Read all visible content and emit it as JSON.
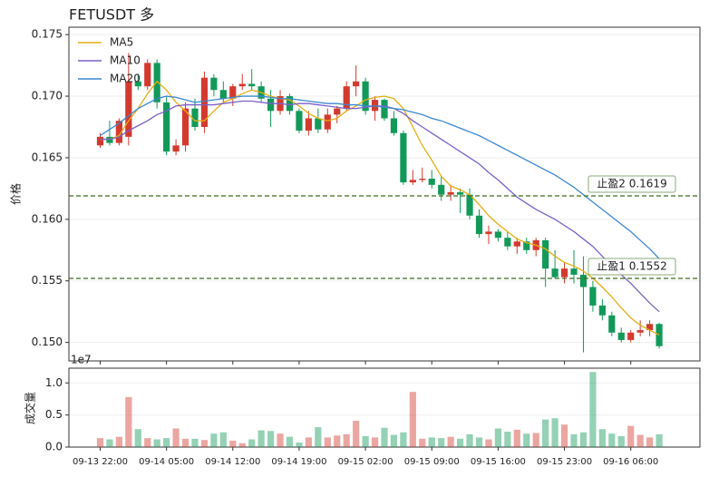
{
  "chart_data": [
    {
      "type": "candlestick",
      "title": "FETUSDT  多",
      "ylabel": "价格",
      "up_color": "#d33a2f",
      "down_color": "#12995a",
      "open": [
        0.166,
        0.1667,
        0.1662,
        0.1667,
        0.1712,
        0.1708,
        0.1727,
        0.1695,
        0.1655,
        0.166,
        0.169,
        0.1675,
        0.1715,
        0.1705,
        0.1698,
        0.1708,
        0.171,
        0.1708,
        0.1698,
        0.1688,
        0.17,
        0.1688,
        0.1672,
        0.1682,
        0.1673,
        0.1685,
        0.169,
        0.1708,
        0.1712,
        0.1688,
        0.1697,
        0.1682,
        0.167,
        0.163,
        0.1632,
        0.1633,
        0.1628,
        0.162,
        0.1622,
        0.162,
        0.1603,
        0.1588,
        0.159,
        0.1585,
        0.1578,
        0.1582,
        0.1575,
        0.1583,
        0.156,
        0.1553,
        0.156,
        0.1555,
        0.1545,
        0.153,
        0.1522,
        0.1508,
        0.1502,
        0.1508,
        0.151,
        0.1515
      ],
      "high": [
        0.167,
        0.168,
        0.1682,
        0.1735,
        0.1718,
        0.173,
        0.173,
        0.17,
        0.1665,
        0.1695,
        0.1698,
        0.172,
        0.1718,
        0.1712,
        0.171,
        0.1718,
        0.1722,
        0.1712,
        0.1705,
        0.1705,
        0.1702,
        0.169,
        0.1688,
        0.169,
        0.169,
        0.1692,
        0.1712,
        0.1725,
        0.1715,
        0.17,
        0.1698,
        0.1688,
        0.1672,
        0.164,
        0.1642,
        0.164,
        0.1635,
        0.1628,
        0.1625,
        0.1625,
        0.1608,
        0.1595,
        0.1592,
        0.159,
        0.1585,
        0.1585,
        0.1585,
        0.1585,
        0.1575,
        0.1565,
        0.1575,
        0.157,
        0.155,
        0.1535,
        0.1525,
        0.1512,
        0.151,
        0.1518,
        0.1518,
        0.1516
      ],
      "low": [
        0.1658,
        0.166,
        0.166,
        0.166,
        0.1705,
        0.1705,
        0.169,
        0.1652,
        0.1652,
        0.1655,
        0.1672,
        0.167,
        0.17,
        0.1695,
        0.1692,
        0.1705,
        0.1705,
        0.1695,
        0.1675,
        0.1685,
        0.1685,
        0.167,
        0.1668,
        0.167,
        0.167,
        0.1678,
        0.1688,
        0.17,
        0.1685,
        0.168,
        0.168,
        0.1668,
        0.1628,
        0.1628,
        0.163,
        0.1625,
        0.1615,
        0.1615,
        0.1605,
        0.16,
        0.1585,
        0.158,
        0.1582,
        0.1575,
        0.1572,
        0.1572,
        0.157,
        0.1545,
        0.1552,
        0.1548,
        0.1548,
        0.1492,
        0.1525,
        0.1518,
        0.1505,
        0.15,
        0.15,
        0.1505,
        0.1505,
        0.1495
      ],
      "close": [
        0.1667,
        0.1662,
        0.168,
        0.1712,
        0.1708,
        0.1727,
        0.1695,
        0.1655,
        0.166,
        0.169,
        0.1675,
        0.1715,
        0.1705,
        0.1698,
        0.1708,
        0.171,
        0.1708,
        0.1698,
        0.1688,
        0.17,
        0.1688,
        0.1672,
        0.1682,
        0.1673,
        0.1685,
        0.169,
        0.1708,
        0.1712,
        0.1688,
        0.1697,
        0.1682,
        0.167,
        0.163,
        0.1632,
        0.1633,
        0.1628,
        0.162,
        0.1622,
        0.162,
        0.1603,
        0.1588,
        0.159,
        0.1585,
        0.1578,
        0.1582,
        0.1575,
        0.1583,
        0.156,
        0.1553,
        0.156,
        0.1555,
        0.1545,
        0.153,
        0.1522,
        0.1508,
        0.1502,
        0.1508,
        0.151,
        0.1515,
        0.1497
      ],
      "series": [
        {
          "name": "MA5",
          "color": "#e6ad12",
          "values": [
            0.1665,
            0.1665,
            0.1668,
            0.168,
            0.169,
            0.1702,
            0.1712,
            0.1705,
            0.1695,
            0.1688,
            0.168,
            0.168,
            0.1688,
            0.1695,
            0.1698,
            0.1702,
            0.1705,
            0.1703,
            0.17,
            0.1698,
            0.1697,
            0.1692,
            0.1686,
            0.1682,
            0.168,
            0.1682,
            0.1688,
            0.1692,
            0.1697,
            0.1699,
            0.17,
            0.1698,
            0.169,
            0.1675,
            0.166,
            0.1648,
            0.1635,
            0.1627,
            0.1624,
            0.162,
            0.1612,
            0.1603,
            0.1596,
            0.159,
            0.1584,
            0.1581,
            0.1579,
            0.1576,
            0.157,
            0.1565,
            0.1562,
            0.1558,
            0.1552,
            0.1545,
            0.1537,
            0.1528,
            0.152,
            0.1514,
            0.151,
            0.1506
          ]
        },
        {
          "name": "MA10",
          "color": "#7b5fc7",
          "values": [
            0.1665,
            0.1665,
            0.1667,
            0.1672,
            0.1676,
            0.168,
            0.1685,
            0.1688,
            0.1692,
            0.1693,
            0.1693,
            0.1693,
            0.1693,
            0.1694,
            0.1695,
            0.1696,
            0.1696,
            0.1695,
            0.1694,
            0.1694,
            0.1693,
            0.1694,
            0.1694,
            0.1693,
            0.1692,
            0.1691,
            0.169,
            0.169,
            0.1691,
            0.1692,
            0.1692,
            0.169,
            0.1686,
            0.168,
            0.1675,
            0.167,
            0.1665,
            0.166,
            0.1655,
            0.165,
            0.1645,
            0.1638,
            0.1632,
            0.1625,
            0.1618,
            0.1613,
            0.1608,
            0.1604,
            0.16,
            0.1595,
            0.159,
            0.1584,
            0.1578,
            0.157,
            0.1562,
            0.1555,
            0.1548,
            0.154,
            0.1532,
            0.1525
          ]
        },
        {
          "name": "MA20",
          "color": "#3b87d0",
          "values": [
            0.1668,
            0.1673,
            0.1678,
            0.1684,
            0.169,
            0.1694,
            0.1698,
            0.17,
            0.1699,
            0.1697,
            0.1695,
            0.1696,
            0.1697,
            0.1698,
            0.1699,
            0.17,
            0.17,
            0.17,
            0.1699,
            0.1698,
            0.1698,
            0.1697,
            0.1696,
            0.1695,
            0.1694,
            0.1694,
            0.1693,
            0.1693,
            0.1692,
            0.1692,
            0.1691,
            0.169,
            0.1689,
            0.1687,
            0.1685,
            0.1682,
            0.168,
            0.1677,
            0.1674,
            0.1671,
            0.1668,
            0.1664,
            0.166,
            0.1656,
            0.1652,
            0.1648,
            0.1644,
            0.164,
            0.1636,
            0.1631,
            0.1626,
            0.162,
            0.1614,
            0.1608,
            0.1602,
            0.1596,
            0.159,
            0.1583,
            0.1576,
            0.1568
          ]
        }
      ],
      "hlines": [
        {
          "label": "止盈2 0.1619",
          "value": 0.1619,
          "color": "#3d6b1e"
        },
        {
          "label": "止盈1 0.1552",
          "value": 0.1552,
          "color": "#3d6b1e"
        }
      ],
      "ylim": [
        0.1485,
        0.1756
      ],
      "yticks": [
        {
          "value": 0.15,
          "label": "0.150"
        },
        {
          "value": 0.155,
          "label": "0.155"
        },
        {
          "value": 0.16,
          "label": "0.160"
        },
        {
          "value": 0.165,
          "label": "0.165"
        },
        {
          "value": 0.17,
          "label": "0.170"
        },
        {
          "value": 0.175,
          "label": "0.175"
        }
      ],
      "grid": true,
      "legend": "upper left"
    },
    {
      "type": "bar",
      "ylabel": "成交量",
      "offset_label": "1e7",
      "categories": [
        "09-13 22:00",
        null,
        null,
        null,
        null,
        null,
        null,
        "09-14 05:00",
        null,
        null,
        null,
        null,
        null,
        null,
        "09-14 12:00",
        null,
        null,
        null,
        null,
        null,
        null,
        "09-14 19:00",
        null,
        null,
        null,
        null,
        null,
        null,
        "09-15 02:00",
        null,
        null,
        null,
        null,
        null,
        null,
        "09-15 09:00",
        null,
        null,
        null,
        null,
        null,
        null,
        "09-15 16:00",
        null,
        null,
        null,
        null,
        null,
        null,
        "09-15 23:00",
        null,
        null,
        null,
        null,
        null,
        null,
        "09-16 06:00",
        null,
        null,
        null
      ],
      "values": [
        0.14,
        0.12,
        0.16,
        0.78,
        0.28,
        0.14,
        0.12,
        0.14,
        0.29,
        0.13,
        0.13,
        0.11,
        0.21,
        0.23,
        0.1,
        0.06,
        0.12,
        0.26,
        0.25,
        0.21,
        0.16,
        0.07,
        0.15,
        0.31,
        0.15,
        0.18,
        0.2,
        0.41,
        0.17,
        0.15,
        0.3,
        0.19,
        0.23,
        0.86,
        0.13,
        0.15,
        0.14,
        0.16,
        0.13,
        0.2,
        0.15,
        0.12,
        0.29,
        0.24,
        0.27,
        0.21,
        0.22,
        0.43,
        0.45,
        0.35,
        0.2,
        0.23,
        1.17,
        0.28,
        0.21,
        0.17,
        0.33,
        0.19,
        0.15,
        0.2
      ],
      "ylim": [
        0,
        1.23
      ],
      "yticks": [
        {
          "value": 0,
          "label": "0.0"
        },
        {
          "value": 0.5,
          "label": "0.5"
        },
        {
          "value": 1.0,
          "label": "1.0"
        }
      ],
      "grid": true
    }
  ]
}
